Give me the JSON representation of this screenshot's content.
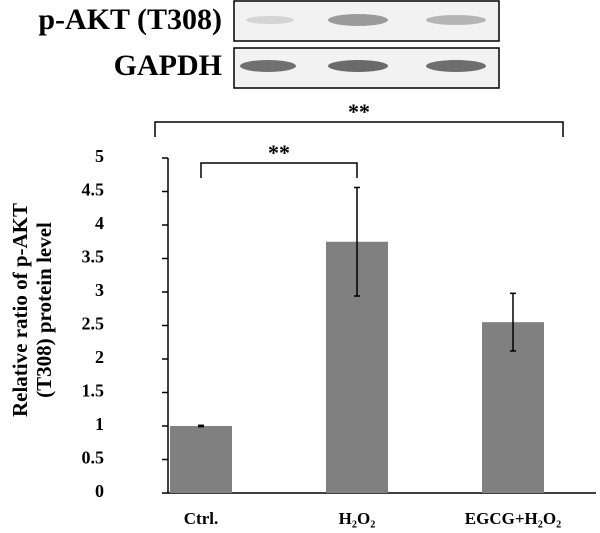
{
  "blot": {
    "rows": [
      "p-AKT (T308)",
      "GAPDH"
    ]
  },
  "chart_data": {
    "type": "bar",
    "y_label": [
      "Relative ratio of p-AKT",
      "(T308) protein level"
    ],
    "categories": [
      "Ctrl.",
      "H₂O₂",
      "EGCG+H₂O₂"
    ],
    "values": [
      1.0,
      3.75,
      2.55
    ],
    "errors": [
      0.01,
      0.81,
      0.43
    ],
    "color": "#808080",
    "ylim": [
      0,
      5
    ],
    "yticks": [
      0,
      0.5,
      1,
      1.5,
      2,
      2.5,
      3,
      3.5,
      4,
      4.5,
      5
    ],
    "annotations": [
      {
        "text": "**",
        "from": 0,
        "to": 1
      },
      {
        "text": "**",
        "from": 0,
        "to": 2
      }
    ]
  }
}
